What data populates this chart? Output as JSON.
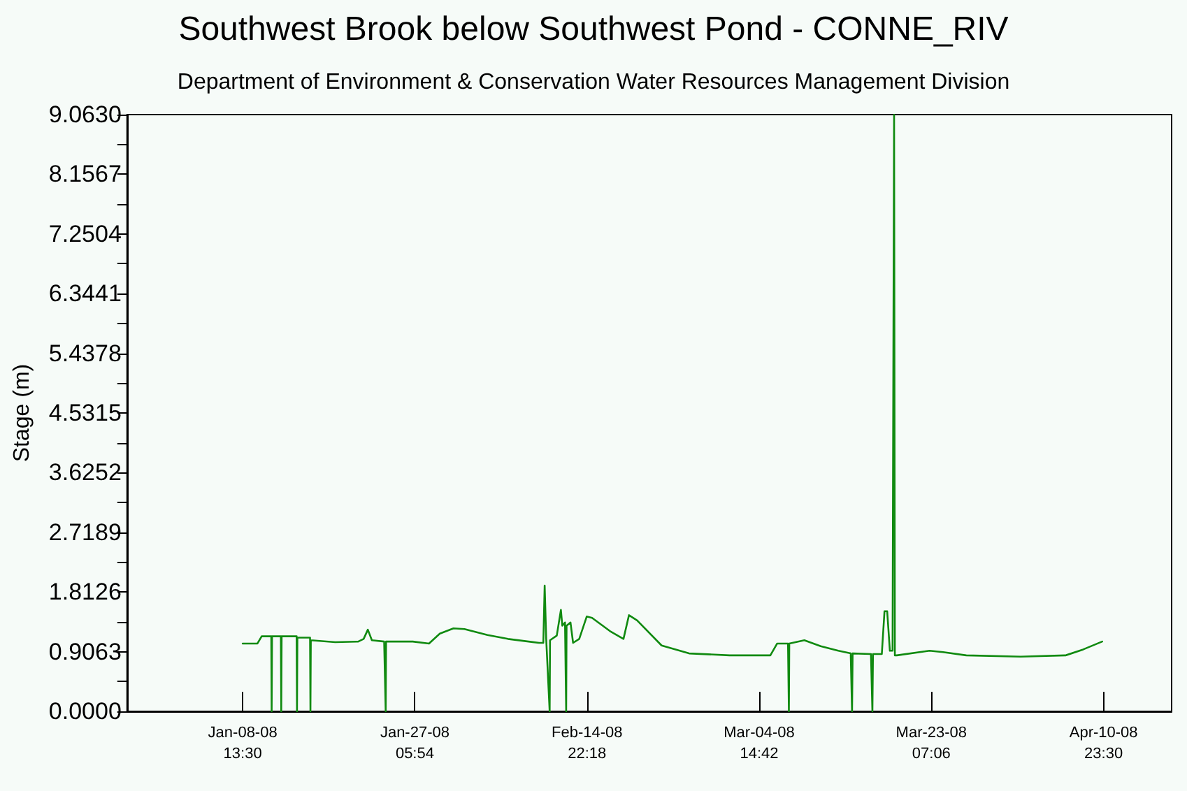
{
  "chart_data": {
    "type": "line",
    "title": "Southwest Brook below Southwest Pond - CONNE_RIV",
    "subtitle": "Department of Environment & Conservation Water Resources Management Division",
    "ylabel": "Stage (m)",
    "xlim": [
      "2007-12-27T00:30",
      "2008-04-18T08:45"
    ],
    "xticks": [
      {
        "value": "2008-01-08T13:30",
        "label": "Jan-08-08\n13:30"
      },
      {
        "value": "2008-01-27T05:54",
        "label": "Jan-27-08\n05:54"
      },
      {
        "value": "2008-02-14T22:18",
        "label": "Feb-14-08\n22:18"
      },
      {
        "value": "2008-03-04T14:42",
        "label": "Mar-04-08\n14:42"
      },
      {
        "value": "2008-03-23T07:06",
        "label": "Mar-23-08\n07:06"
      },
      {
        "value": "2008-04-10T23:30",
        "label": "Apr-10-08\n23:30"
      }
    ],
    "ylim": [
      0,
      9.063
    ],
    "yticks": [
      {
        "value": 0,
        "label": "0.0000"
      },
      {
        "value": 0.4532,
        "label": null
      },
      {
        "value": 0.9063,
        "label": "0.9063"
      },
      {
        "value": 1.3595,
        "label": null
      },
      {
        "value": 1.8126,
        "label": "1.8126"
      },
      {
        "value": 2.2658,
        "label": null
      },
      {
        "value": 2.7189,
        "label": "2.7189"
      },
      {
        "value": 3.1721,
        "label": null
      },
      {
        "value": 3.6252,
        "label": "3.6252"
      },
      {
        "value": 4.0784,
        "label": null
      },
      {
        "value": 4.5315,
        "label": "4.5315"
      },
      {
        "value": 4.9847,
        "label": null
      },
      {
        "value": 5.4378,
        "label": "5.4378"
      },
      {
        "value": 5.891,
        "label": null
      },
      {
        "value": 6.3441,
        "label": "6.3441"
      },
      {
        "value": 6.7973,
        "label": null
      },
      {
        "value": 7.2504,
        "label": "7.2504"
      },
      {
        "value": 7.7036,
        "label": null
      },
      {
        "value": 8.1567,
        "label": "8.1567"
      },
      {
        "value": 8.6099,
        "label": null
      },
      {
        "value": 9.063,
        "label": "9.0630"
      }
    ],
    "grid": false,
    "marker": "none",
    "line_style": "solid",
    "series": [
      {
        "color": "#108a10",
        "x": [
          "2008-01-08T13:30",
          "2008-01-10T04:00",
          "2008-01-10T15:00",
          "2008-01-11T16:00",
          "2008-01-11T17:00",
          "2008-01-11T18:00",
          "2008-01-12T17:00",
          "2008-01-12T18:00",
          "2008-01-12T19:00",
          "2008-01-14T10:00",
          "2008-01-14T11:00",
          "2008-01-14T12:00",
          "2008-01-15T21:00",
          "2008-01-15T22:00",
          "2008-01-15T23:00",
          "2008-01-18T14:30",
          "2008-01-21T02:30",
          "2008-01-21T16:30",
          "2008-01-22T03:30",
          "2008-01-22T14:00",
          "2008-01-23T22:00",
          "2008-01-24T02:00",
          "2008-01-24T03:00",
          "2008-01-27T00:30",
          "2008-01-28T18:45",
          "2008-01-29T23:00",
          "2008-01-31T10:30",
          "2008-02-01T15:00",
          "2008-02-04T03:00",
          "2008-02-06T08:15",
          "2008-02-09T17:30",
          "2008-02-10T04:30",
          "2008-02-10T08:00",
          "2008-02-10T12:00",
          "2008-02-10T21:00",
          "2008-02-10T22:00",
          "2008-02-11T15:30",
          "2008-02-12T02:15",
          "2008-02-12T06:00",
          "2008-02-12T13:00",
          "2008-02-12T16:00",
          "2008-02-12T17:00",
          "2008-02-13T03:15",
          "2008-02-13T10:00",
          "2008-02-14T02:00",
          "2008-02-14T21:30",
          "2008-02-15T11:30",
          "2008-02-17T09:45",
          "2008-02-18T21:15",
          "2008-02-19T11:30",
          "2008-02-20T08:45",
          "2008-02-23T00:30",
          "2008-02-26T00:00",
          "2008-03-01T09:30",
          "2008-03-05T19:45",
          "2008-03-06T13:30",
          "2008-03-07T17:45",
          "2008-03-07T20:00",
          "2008-03-07T21:00",
          "2008-03-09T12:15",
          "2008-03-11T06:45",
          "2008-03-13T04:45",
          "2008-03-14T13:00",
          "2008-03-14T16:30",
          "2008-03-14T18:00",
          "2008-03-16T17:45",
          "2008-03-16T21:30",
          "2008-03-16T23:00",
          "2008-03-17T22:00",
          "2008-03-18T05:00",
          "2008-03-18T12:00",
          "2008-03-18T19:00",
          "2008-03-19T02:00",
          "2008-03-19T04:00",
          "2008-03-19T06:00",
          "2008-03-19T08:00",
          "2008-03-19T13:00",
          "2008-03-23T02:15",
          "2008-03-24T13:30",
          "2008-03-27T02:00",
          "2008-04-01T23:30",
          "2008-04-06T20:30",
          "2008-04-08T18:30",
          "2008-04-10T20:00"
        ],
        "values": [
          1.03,
          1.03,
          1.14,
          1.14,
          0,
          1.14,
          1.14,
          0,
          1.14,
          1.14,
          0,
          1.12,
          1.12,
          0,
          1.08,
          1.05,
          1.06,
          1.1,
          1.24,
          1.08,
          1.06,
          0,
          1.06,
          1.06,
          1.03,
          1.18,
          1.26,
          1.25,
          1.16,
          1.1,
          1.04,
          1.04,
          1.91,
          1.1,
          0,
          1.08,
          1.15,
          1.54,
          1.3,
          1.35,
          0,
          1.3,
          1.35,
          1.04,
          1.1,
          1.44,
          1.42,
          1.22,
          1.1,
          1.46,
          1.38,
          1.0,
          0.88,
          0.85,
          0.85,
          1.03,
          1.03,
          0,
          1.03,
          1.08,
          0.99,
          0.92,
          0.88,
          0,
          0.88,
          0.87,
          0,
          0.87,
          0.87,
          1.52,
          1.52,
          0.92,
          0.92,
          5.13,
          9.06,
          0.85,
          0.85,
          0.92,
          0.9,
          0.85,
          0.83,
          0.85,
          0.94,
          1.06
        ]
      }
    ]
  }
}
